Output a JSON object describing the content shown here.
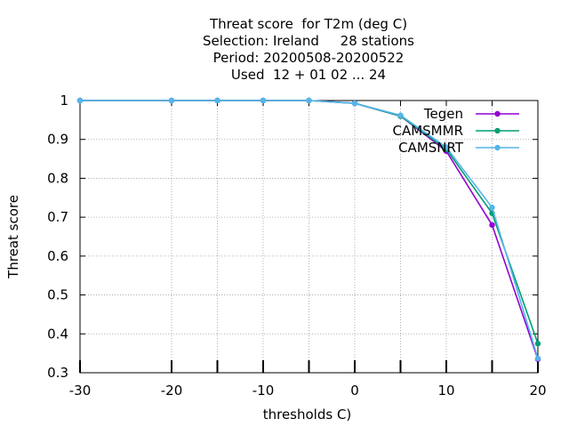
{
  "chart_data": {
    "type": "line",
    "title_lines": [
      "Threat score  for T2m (deg C)",
      "Selection: Ireland     28 stations",
      "Period: 20200508-20200522",
      "Used  12 + 01 02 ... 24"
    ],
    "xlabel": "thresholds C)",
    "ylabel": "Threat score",
    "xlim": [
      -30,
      20
    ],
    "ylim": [
      0.3,
      1.0
    ],
    "xticks": [
      -30,
      -20,
      -10,
      0,
      10,
      20
    ],
    "xtick_labels": [
      "-30",
      "-20",
      "-10",
      "0",
      "10",
      "20"
    ],
    "xtick_marks": [
      -30,
      -20,
      -15,
      -10,
      -5,
      0,
      5,
      10,
      15,
      20
    ],
    "yticks": [
      0.3,
      0.4,
      0.5,
      0.6,
      0.7,
      0.8,
      0.9,
      1.0
    ],
    "ytick_labels": [
      "0.3",
      "0.4",
      "0.5",
      "0.6",
      "0.7",
      "0.8",
      "0.9",
      "1"
    ],
    "grid": true,
    "legend_position": "top-right",
    "x": [
      -30,
      -20,
      -15,
      -10,
      -5,
      0,
      5,
      10,
      15,
      20
    ],
    "series": [
      {
        "name": "Tegen",
        "color": "#9400d3",
        "values": [
          1.0,
          1.0,
          1.0,
          1.0,
          1.0,
          0.993,
          0.96,
          0.87,
          0.68,
          0.335
        ]
      },
      {
        "name": "CAMSMMR",
        "color": "#009e73",
        "values": [
          1.0,
          1.0,
          1.0,
          1.0,
          1.0,
          0.993,
          0.96,
          0.875,
          0.71,
          0.375
        ]
      },
      {
        "name": "CAMSNRT",
        "color": "#56b4e9",
        "values": [
          1.0,
          1.0,
          1.0,
          1.0,
          1.0,
          0.993,
          0.962,
          0.88,
          0.725,
          0.337
        ]
      }
    ]
  }
}
